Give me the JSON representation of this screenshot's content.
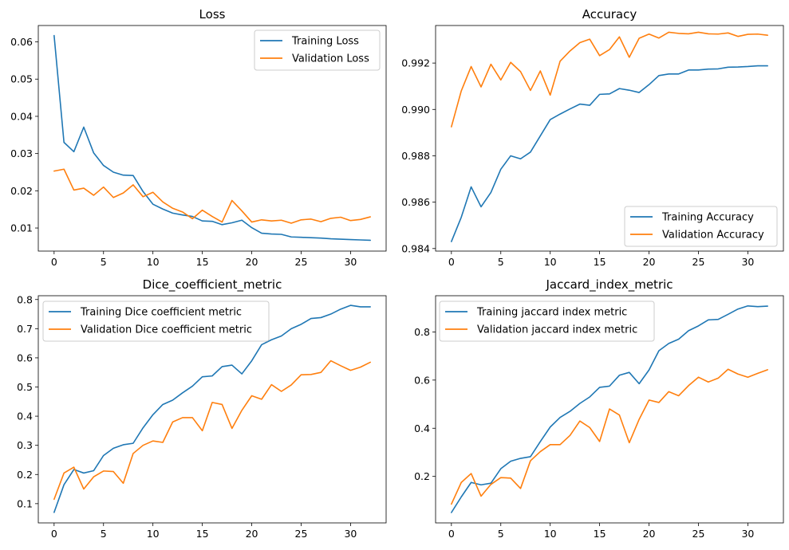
{
  "colors": {
    "training": "#1f77b4",
    "validation": "#ff7f0e"
  },
  "chart_data": [
    {
      "type": "line",
      "title": "Loss",
      "xlim": [
        -1.6,
        33.6
      ],
      "ylim": [
        0.0038,
        0.0644
      ],
      "xticks": [
        0,
        5,
        10,
        15,
        20,
        25,
        30
      ],
      "yticks": [
        0.01,
        0.02,
        0.03,
        0.04,
        0.05,
        0.06
      ],
      "ytick_labels": [
        "0.01",
        "0.02",
        "0.03",
        "0.04",
        "0.05",
        "0.06"
      ],
      "legend_position": "top-right",
      "x": [
        0,
        1,
        2,
        3,
        4,
        5,
        6,
        7,
        8,
        9,
        10,
        11,
        12,
        13,
        14,
        15,
        16,
        17,
        18,
        19,
        20,
        21,
        22,
        23,
        24,
        25,
        26,
        27,
        28,
        29,
        30,
        31,
        32
      ],
      "series": [
        {
          "name": "Training Loss",
          "color_key": "training",
          "values": [
            0.0617,
            0.033,
            0.0305,
            0.0371,
            0.0302,
            0.0268,
            0.025,
            0.0242,
            0.0241,
            0.0198,
            0.0164,
            0.0151,
            0.014,
            0.0135,
            0.0131,
            0.0119,
            0.0118,
            0.0109,
            0.0114,
            0.0121,
            0.0101,
            0.0086,
            0.0084,
            0.0083,
            0.0076,
            0.0075,
            0.0074,
            0.0073,
            0.0071,
            0.007,
            0.0069,
            0.0068,
            0.0067
          ]
        },
        {
          "name": "Validation Loss",
          "color_key": "validation",
          "values": [
            0.0253,
            0.0258,
            0.0202,
            0.0207,
            0.0188,
            0.021,
            0.0182,
            0.0194,
            0.0216,
            0.0184,
            0.0196,
            0.017,
            0.0153,
            0.0143,
            0.0125,
            0.0148,
            0.0131,
            0.0116,
            0.0174,
            0.0146,
            0.0116,
            0.0122,
            0.0119,
            0.0121,
            0.0113,
            0.0122,
            0.0124,
            0.0117,
            0.0126,
            0.0129,
            0.012,
            0.0123,
            0.013
          ]
        }
      ]
    },
    {
      "type": "line",
      "title": "Accuracy",
      "xlim": [
        -1.6,
        33.6
      ],
      "ylim": [
        0.98389,
        0.99362
      ],
      "xticks": [
        0,
        5,
        10,
        15,
        20,
        25,
        30
      ],
      "yticks": [
        0.984,
        0.986,
        0.988,
        0.99,
        0.992
      ],
      "ytick_labels": [
        "0.984",
        "0.986",
        "0.988",
        "0.990",
        "0.992"
      ],
      "legend_position": "bottom-right",
      "x": [
        0,
        1,
        2,
        3,
        4,
        5,
        6,
        7,
        8,
        9,
        10,
        11,
        12,
        13,
        14,
        15,
        16,
        17,
        18,
        19,
        20,
        21,
        22,
        23,
        24,
        25,
        26,
        27,
        28,
        29,
        30,
        31,
        32
      ],
      "series": [
        {
          "name": "Training Accuracy",
          "color_key": "training",
          "values": [
            0.9843,
            0.98535,
            0.98666,
            0.9858,
            0.98642,
            0.98742,
            0.988,
            0.98787,
            0.98816,
            0.98886,
            0.98956,
            0.9898,
            0.99002,
            0.99023,
            0.99018,
            0.99065,
            0.99067,
            0.9909,
            0.99083,
            0.99073,
            0.99107,
            0.99146,
            0.99153,
            0.99153,
            0.9917,
            0.9917,
            0.99174,
            0.99175,
            0.99182,
            0.99183,
            0.99185,
            0.99188,
            0.99188
          ]
        },
        {
          "name": "Validation Accuracy",
          "color_key": "validation",
          "values": [
            0.98925,
            0.9908,
            0.99185,
            0.99097,
            0.99195,
            0.99127,
            0.99203,
            0.99163,
            0.99082,
            0.99166,
            0.99062,
            0.99208,
            0.99252,
            0.99288,
            0.99303,
            0.99232,
            0.99258,
            0.99313,
            0.99225,
            0.99307,
            0.99325,
            0.99308,
            0.99333,
            0.99328,
            0.99326,
            0.99333,
            0.99326,
            0.99325,
            0.9933,
            0.99315,
            0.99324,
            0.99325,
            0.9932
          ]
        }
      ]
    },
    {
      "type": "line",
      "title": "Dice_coefficient_metric",
      "xlim": [
        -1.6,
        33.6
      ],
      "ylim": [
        0.034,
        0.813
      ],
      "xticks": [
        0,
        5,
        10,
        15,
        20,
        25,
        30
      ],
      "yticks": [
        0.1,
        0.2,
        0.3,
        0.4,
        0.5,
        0.6,
        0.7,
        0.8
      ],
      "ytick_labels": [
        "0.1",
        "0.2",
        "0.3",
        "0.4",
        "0.5",
        "0.6",
        "0.7",
        "0.8"
      ],
      "legend_position": "top-left",
      "x": [
        0,
        1,
        2,
        3,
        4,
        5,
        6,
        7,
        8,
        9,
        10,
        11,
        12,
        13,
        14,
        15,
        16,
        17,
        18,
        19,
        20,
        21,
        22,
        23,
        24,
        25,
        26,
        27,
        28,
        29,
        30,
        31,
        32
      ],
      "series": [
        {
          "name": "Training Dice coefficient metric",
          "color_key": "training",
          "values": [
            0.07,
            0.165,
            0.217,
            0.205,
            0.213,
            0.265,
            0.29,
            0.302,
            0.307,
            0.36,
            0.405,
            0.44,
            0.455,
            0.48,
            0.503,
            0.535,
            0.538,
            0.57,
            0.575,
            0.545,
            0.59,
            0.645,
            0.662,
            0.675,
            0.7,
            0.715,
            0.735,
            0.738,
            0.75,
            0.767,
            0.78,
            0.775,
            0.775
          ]
        },
        {
          "name": "Validation Dice coefficient metric",
          "color_key": "validation",
          "values": [
            0.115,
            0.205,
            0.225,
            0.15,
            0.192,
            0.212,
            0.21,
            0.17,
            0.272,
            0.3,
            0.315,
            0.31,
            0.38,
            0.395,
            0.395,
            0.35,
            0.447,
            0.44,
            0.358,
            0.42,
            0.47,
            0.458,
            0.508,
            0.485,
            0.507,
            0.542,
            0.543,
            0.55,
            0.59,
            0.573,
            0.557,
            0.568,
            0.585
          ]
        }
      ]
    },
    {
      "type": "line",
      "title": "Jaccard_index_metric",
      "xlim": [
        -1.6,
        33.6
      ],
      "ylim": [
        0.007,
        0.9503
      ],
      "xticks": [
        0,
        5,
        10,
        15,
        20,
        25,
        30
      ],
      "yticks": [
        0.2,
        0.4,
        0.6,
        0.8
      ],
      "ytick_labels": [
        "0.2",
        "0.4",
        "0.6",
        "0.8"
      ],
      "legend_position": "top-left",
      "x": [
        0,
        1,
        2,
        3,
        4,
        5,
        6,
        7,
        8,
        9,
        10,
        11,
        12,
        13,
        14,
        15,
        16,
        17,
        18,
        19,
        20,
        21,
        22,
        23,
        24,
        25,
        26,
        27,
        28,
        29,
        30,
        31,
        32
      ],
      "series": [
        {
          "name": "Training jaccard index metric",
          "color_key": "training",
          "values": [
            0.05,
            0.115,
            0.175,
            0.165,
            0.172,
            0.232,
            0.263,
            0.275,
            0.282,
            0.345,
            0.405,
            0.445,
            0.47,
            0.503,
            0.53,
            0.57,
            0.575,
            0.62,
            0.632,
            0.585,
            0.642,
            0.722,
            0.752,
            0.77,
            0.805,
            0.825,
            0.85,
            0.852,
            0.873,
            0.895,
            0.908,
            0.905,
            0.907
          ]
        },
        {
          "name": "Validation jaccard index metric",
          "color_key": "validation",
          "values": [
            0.085,
            0.175,
            0.212,
            0.118,
            0.167,
            0.195,
            0.193,
            0.15,
            0.265,
            0.303,
            0.332,
            0.332,
            0.37,
            0.43,
            0.403,
            0.345,
            0.48,
            0.455,
            0.34,
            0.437,
            0.517,
            0.507,
            0.552,
            0.535,
            0.577,
            0.612,
            0.592,
            0.608,
            0.645,
            0.625,
            0.612,
            0.628,
            0.643
          ]
        }
      ]
    }
  ]
}
